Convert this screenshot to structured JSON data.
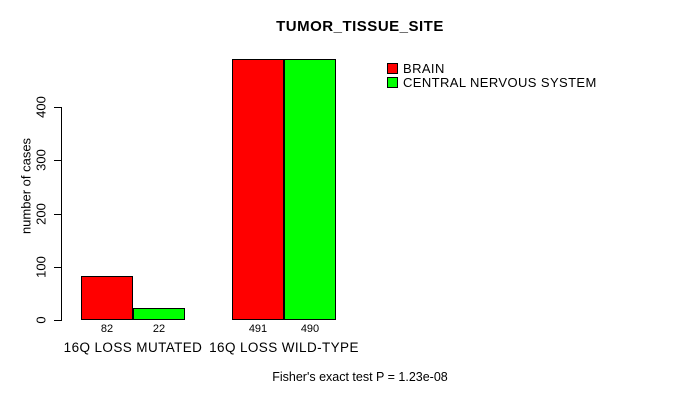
{
  "title": "TUMOR_TISSUE_SITE",
  "caption": "Fisher's exact test P = 1.23e-08",
  "colors": {
    "background": "#ffffff",
    "text": "#000000",
    "axis": "#000000",
    "bar_border": "#000000",
    "brain": "#ff0000",
    "central_nervous_system": "#00ff00"
  },
  "chart_data": {
    "type": "bar",
    "title": "TUMOR_TISSUE_SITE",
    "xlabel": "",
    "ylabel": "number of cases",
    "categories": [
      "16Q LOSS MUTATED",
      "16Q LOSS WILD-TYPE"
    ],
    "series": [
      {
        "name": "BRAIN",
        "color": "#ff0000",
        "values": [
          82,
          491
        ]
      },
      {
        "name": "CENTRAL NERVOUS SYSTEM",
        "color": "#00ff00",
        "values": [
          22,
          490
        ]
      }
    ],
    "bar_value_labels": [
      [
        "82",
        "491"
      ],
      [
        "22",
        "490"
      ]
    ],
    "yticks": [
      0,
      100,
      200,
      300,
      400
    ],
    "ylim": [
      0,
      500
    ],
    "grid": false,
    "legend_position": "top-right",
    "annotation": "Fisher's exact test P = 1.23e-08"
  }
}
